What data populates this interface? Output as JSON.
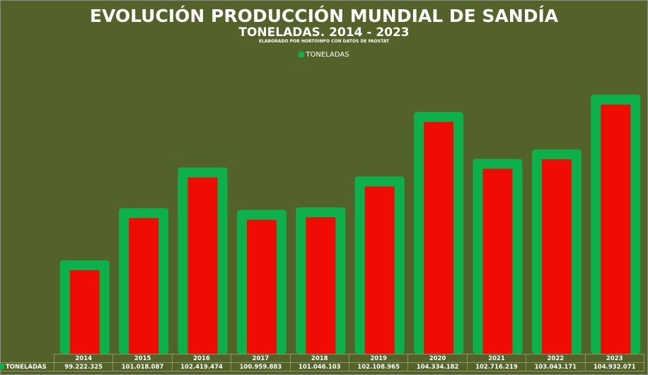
{
  "chart_data": {
    "type": "bar",
    "title": "EVOLUCIÓN PRODUCCIÓN MUNDIAL DE SANDÍA",
    "subtitle": "TONELADAS. 2014 - 2023",
    "source": "ELABORADO POR HORTOINFO CON DATOS DE FAOSTAT",
    "legend": [
      "TONELADAS"
    ],
    "legend_position": "top",
    "categories": [
      "2014",
      "2015",
      "2016",
      "2017",
      "2018",
      "2019",
      "2020",
      "2021",
      "2022",
      "2023"
    ],
    "series": [
      {
        "name": "TONELADAS",
        "values": [
          99222325,
          101018087,
          102419474,
          100959883,
          101046103,
          102108965,
          104334182,
          102716219,
          103043171,
          104932071
        ]
      }
    ],
    "value_labels": [
      "99.222.325",
      "101.018.087",
      "102.419.474",
      "100.959.883",
      "101.046.103",
      "102.108.965",
      "104.334.182",
      "102.716.219",
      "103.043.171",
      "104.932.071"
    ],
    "ylim": [
      96000000,
      106000000
    ],
    "grid": false,
    "colors": {
      "fill": "#ee0c05",
      "border": "#0db14b",
      "background": "#536229"
    }
  }
}
